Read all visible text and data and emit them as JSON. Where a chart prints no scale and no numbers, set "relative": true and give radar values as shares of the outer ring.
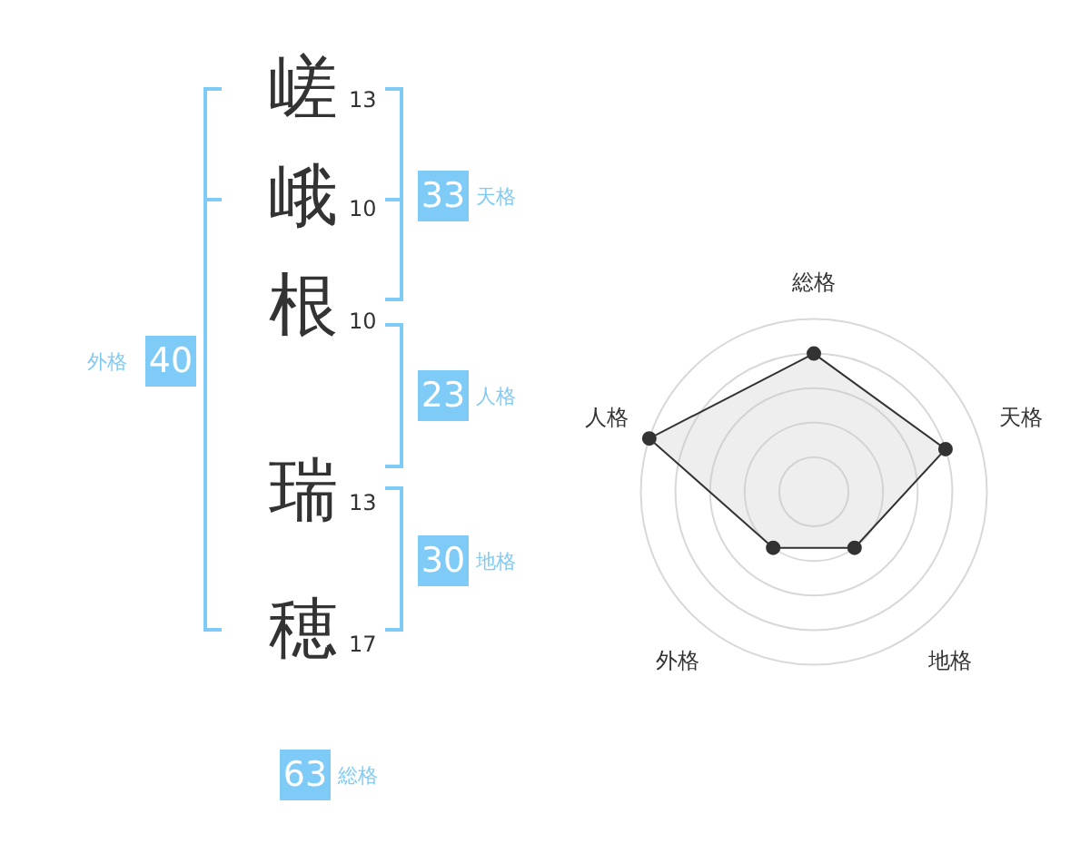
{
  "chart_data": [
    {
      "type": "other",
      "categories": [
        "嵯",
        "峨",
        "根",
        "瑞",
        "穂"
      ],
      "annotations": [
        "13",
        "10",
        "10",
        "13",
        "17",
        "33",
        "天格",
        "23",
        "人格",
        "30",
        "地格",
        "40",
        "外格",
        "63",
        "総格"
      ]
    },
    {
      "type": "radar",
      "categories": [
        "総格",
        "天格",
        "地格",
        "外格",
        "人格"
      ],
      "relative": true,
      "grid": true,
      "marker": "circle",
      "series": [
        {
          "color": "#333333",
          "values": [
            0.8,
            0.8,
            0.4,
            0.4,
            1.0
          ]
        }
      ]
    }
  ]
}
